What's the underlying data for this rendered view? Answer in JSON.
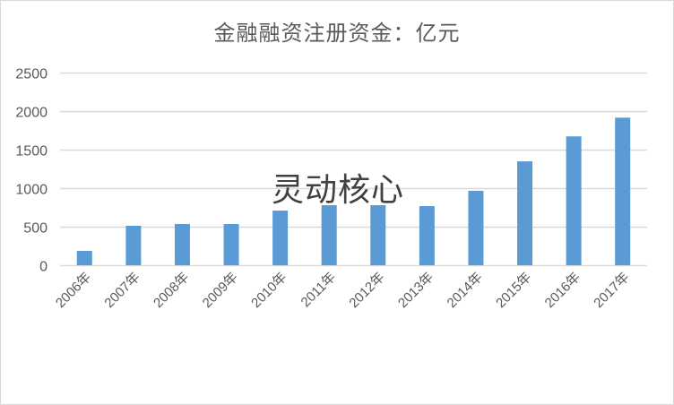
{
  "chart_data": {
    "type": "bar",
    "title": "金融融资注册资金：亿元",
    "xlabel": "",
    "ylabel": "",
    "categories": [
      "2006年",
      "2007年",
      "2008年",
      "2009年",
      "2010年",
      "2011年",
      "2012年",
      "2013年",
      "2014年",
      "2015年",
      "2016年",
      "2017年"
    ],
    "series": [
      {
        "name": "注册资金",
        "values": [
          186,
          512,
          535,
          535,
          709,
          779,
          779,
          767,
          966,
          1348,
          1672,
          1915
        ],
        "color": "#5b9bd5"
      }
    ],
    "ylim": [
      0,
      2500
    ],
    "yticks": [
      0,
      500,
      1000,
      1500,
      2000,
      2500
    ],
    "grid": true,
    "legend": "none"
  },
  "watermark": "灵动核心",
  "colors": {
    "bar": "#5b9bd5",
    "grid": "#d9d9d9",
    "text": "#595959"
  }
}
